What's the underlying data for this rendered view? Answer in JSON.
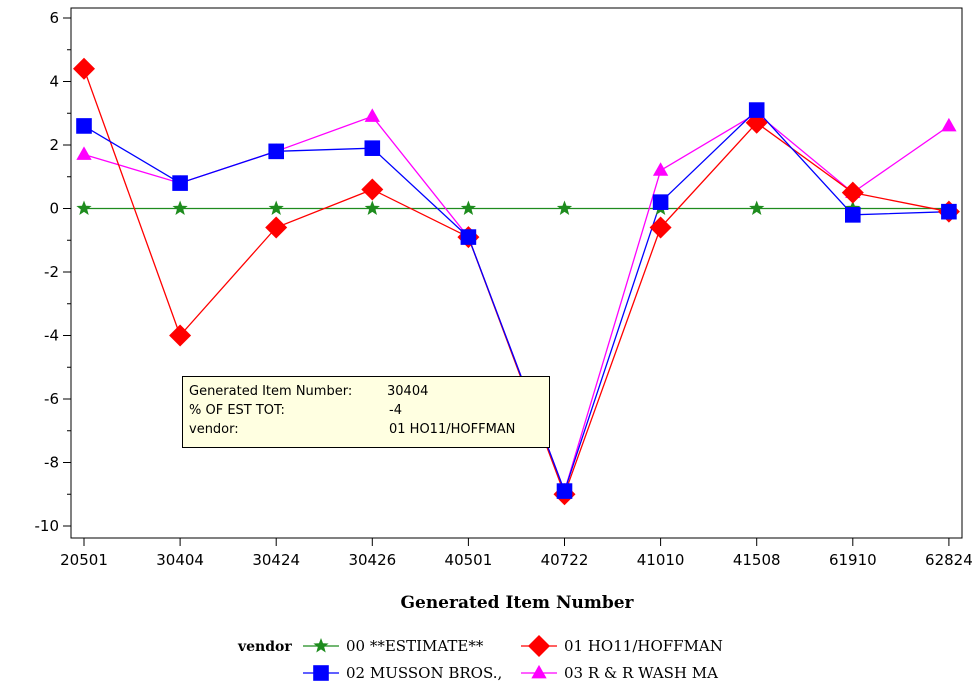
{
  "chart_data": {
    "type": "line",
    "xlabel": "Generated Item Number",
    "ylabel": "",
    "categories": [
      "20501",
      "30404",
      "30424",
      "30426",
      "40501",
      "40722",
      "41010",
      "41508",
      "61910",
      "62824"
    ],
    "ylim": [
      -10,
      6
    ],
    "yticks": [
      6,
      4,
      2,
      0,
      -2,
      -4,
      -6,
      -8,
      -10
    ],
    "grid": false,
    "legend_title": "vendor",
    "legend_position": "bottom",
    "series": [
      {
        "name": "00 **ESTIMATE**",
        "color": "#1e8c1e",
        "marker": "star",
        "values": [
          0,
          0,
          0,
          0,
          0,
          0,
          0,
          0,
          0,
          0
        ]
      },
      {
        "name": "01 HO11/HOFFMAN",
        "color": "#ff0000",
        "marker": "diamond",
        "values": [
          4.4,
          -4.0,
          -0.6,
          0.6,
          -0.9,
          -9.0,
          -0.6,
          2.7,
          0.5,
          -0.1
        ]
      },
      {
        "name": "02 MUSSON BROS.,",
        "color": "#0000ff",
        "marker": "square",
        "values": [
          2.6,
          0.8,
          1.8,
          1.9,
          -0.9,
          -8.9,
          0.2,
          3.1,
          -0.2,
          -0.1
        ]
      },
      {
        "name": "03 R & R WASH MA",
        "color": "#ff00ff",
        "marker": "triangle",
        "values": [
          1.7,
          0.8,
          1.8,
          2.9,
          -0.9,
          -8.9,
          1.2,
          3.0,
          0.5,
          2.6
        ]
      }
    ]
  },
  "tooltip": {
    "row1_key": "Generated Item Number:",
    "row1_value": "30404",
    "row2_key": "% OF EST TOT:",
    "row2_value": "-4",
    "row3_key": "vendor:",
    "row3_value": "01 HO11/HOFFMAN"
  }
}
